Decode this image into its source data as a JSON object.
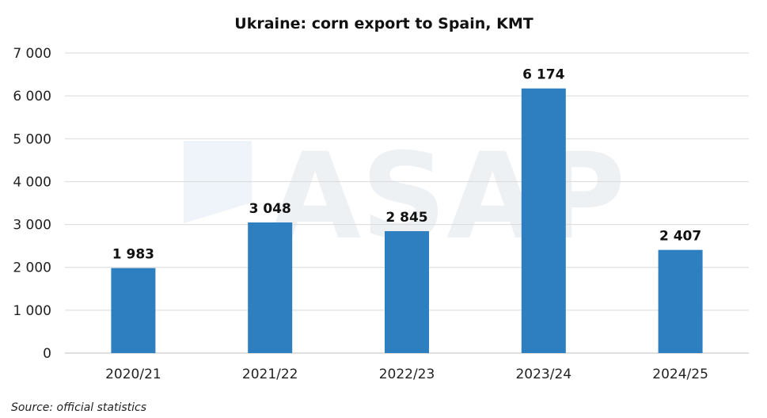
{
  "chart_data": {
    "type": "bar",
    "title": "Ukraine: corn export to Spain, KMT",
    "categories": [
      "2020/21",
      "2021/22",
      "2022/23",
      "2023/24",
      "2024/25"
    ],
    "values": [
      1983,
      3048,
      2845,
      6174,
      2407
    ],
    "data_labels": [
      "1 983",
      "3 048",
      "2 845",
      "6 174",
      "2 407"
    ],
    "y_ticks": [
      0,
      1000,
      2000,
      3000,
      4000,
      5000,
      6000,
      7000
    ],
    "y_tick_labels": [
      "0",
      "1 000",
      "2 000",
      "3 000",
      "4 000",
      "5 000",
      "6 000",
      "7 000"
    ],
    "ylim": [
      0,
      7000
    ],
    "grid": true,
    "legend": "none",
    "bar_color": "#2e7fbf",
    "source": "Source: official statistics",
    "watermark": "ASAP"
  }
}
